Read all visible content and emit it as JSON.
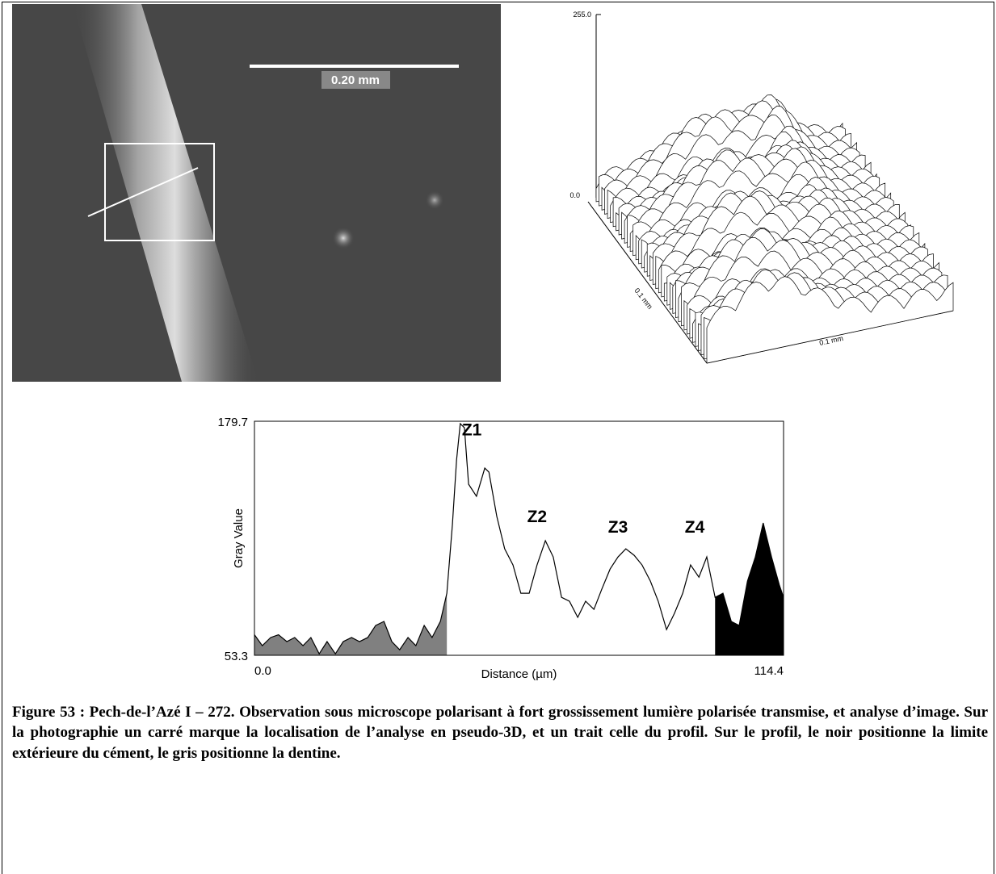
{
  "photo": {
    "scale_label": "0.20 mm"
  },
  "surface_plot": {
    "z_top": "255.0",
    "z_bottom": "0.0",
    "depth_label": "0.1 mm",
    "width_label": "0.1 mm"
  },
  "chart_data": {
    "type": "line",
    "x_label": "Distance (µm)",
    "y_label": "Gray Value",
    "x": [
      0,
      1.7,
      3.5,
      5.2,
      7.0,
      8.7,
      10.5,
      12.2,
      14.0,
      15.7,
      17.5,
      19.2,
      21.0,
      22.7,
      24.5,
      26.2,
      28.0,
      29.7,
      31.4,
      33.2,
      34.9,
      36.7,
      38.4,
      40.2,
      41.6,
      42.8,
      43.7,
      44.5,
      45.4,
      46.3,
      48.0,
      49.8,
      50.7,
      52.4,
      54.1,
      55.9,
      57.6,
      59.4,
      61.1,
      62.9,
      64.6,
      66.4,
      68.1,
      69.9,
      71.6,
      73.4,
      75.1,
      76.9,
      78.6,
      80.3,
      82.1,
      83.8,
      85.6,
      87.3,
      89.1,
      90.8,
      92.6,
      94.3,
      96.1,
      97.8,
      99.6,
      101.3,
      103.1,
      104.8,
      106.6,
      108.3,
      110.0,
      111.8,
      113.5,
      114.4
    ],
    "series": [
      {
        "color": "#000000",
        "values": [
          64.4,
          58.5,
          62.9,
          64.4,
          60.7,
          62.9,
          58.5,
          62.9,
          54.1,
          60.7,
          54.1,
          60.7,
          62.9,
          60.7,
          62.9,
          69.4,
          71.6,
          60.7,
          56.3,
          62.9,
          58.5,
          69.4,
          62.9,
          71.6,
          86.8,
          123.9,
          158.8,
          178.4,
          176.2,
          145.7,
          139.2,
          154.4,
          152.2,
          128.3,
          110.8,
          102.1,
          86.8,
          86.8,
          102.1,
          115.2,
          106.4,
          84.6,
          82.5,
          73.8,
          82.5,
          78.1,
          89.0,
          99.9,
          106.4,
          110.8,
          107.3,
          102.1,
          93.4,
          82.5,
          67.2,
          75.9,
          86.8,
          102.1,
          95.5,
          106.4,
          84.6,
          86.8,
          71.6,
          69.4,
          93.4,
          106.4,
          124.8,
          106.4,
          91.2,
          84.6
        ]
      }
    ],
    "regions": [
      {
        "from": 0,
        "to": 41.6,
        "color": "#808080"
      },
      {
        "from": 99.6,
        "to": 114.4,
        "color": "#000000"
      }
    ],
    "annotations": [
      {
        "text": "Z1",
        "x": 47.0,
        "y": 172.0
      },
      {
        "text": "Z2",
        "x": 61.1,
        "y": 125.2
      },
      {
        "text": "Z3",
        "x": 78.6,
        "y": 119.5
      },
      {
        "text": "Z4",
        "x": 95.2,
        "y": 119.5
      }
    ],
    "xlim": [
      0,
      114.4
    ],
    "ylim": [
      53.3,
      179.7
    ],
    "xticks": [
      {
        "value": 0,
        "label": "0.0"
      },
      114.4
    ],
    "yticks": [
      53.3,
      179.7
    ]
  },
  "caption": "Figure 53 : Pech-de-l’Azé I – 272. Observation sous microscope polarisant à fort grossissement lumière polarisée transmise, et analyse d’image. Sur la photographie un carré marque la localisation de l’analyse en pseudo-3D, et un trait celle du profil. Sur le profil, le noir positionne la limite extérieure du cément, le gris positionne la dentine."
}
